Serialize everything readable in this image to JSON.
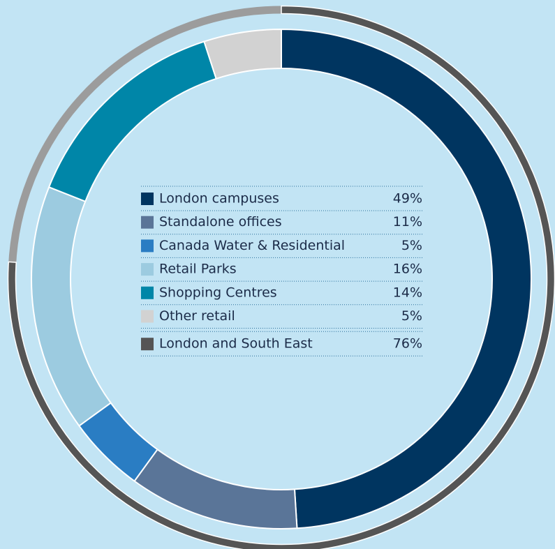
{
  "chart_data": {
    "type": "donut",
    "categories": [
      "London campuses",
      "Standalone offices",
      "Canada Water & Residential",
      "Retail Parks",
      "Shopping Centres",
      "Other retail"
    ],
    "values": [
      49,
      11,
      5,
      16,
      14,
      5
    ],
    "value_labels": [
      "49%",
      "11%",
      "5%",
      "16%",
      "14%",
      "5%"
    ],
    "colors": [
      "#003560",
      "#5a7598",
      "#2a7dc3",
      "#9ccbe0",
      "#0086a8",
      "#d2d2d2"
    ],
    "outer": {
      "categories": [
        "London and South East"
      ],
      "values": [
        76
      ],
      "value_labels": [
        "76%"
      ],
      "colors": [
        "#555555"
      ]
    }
  }
}
